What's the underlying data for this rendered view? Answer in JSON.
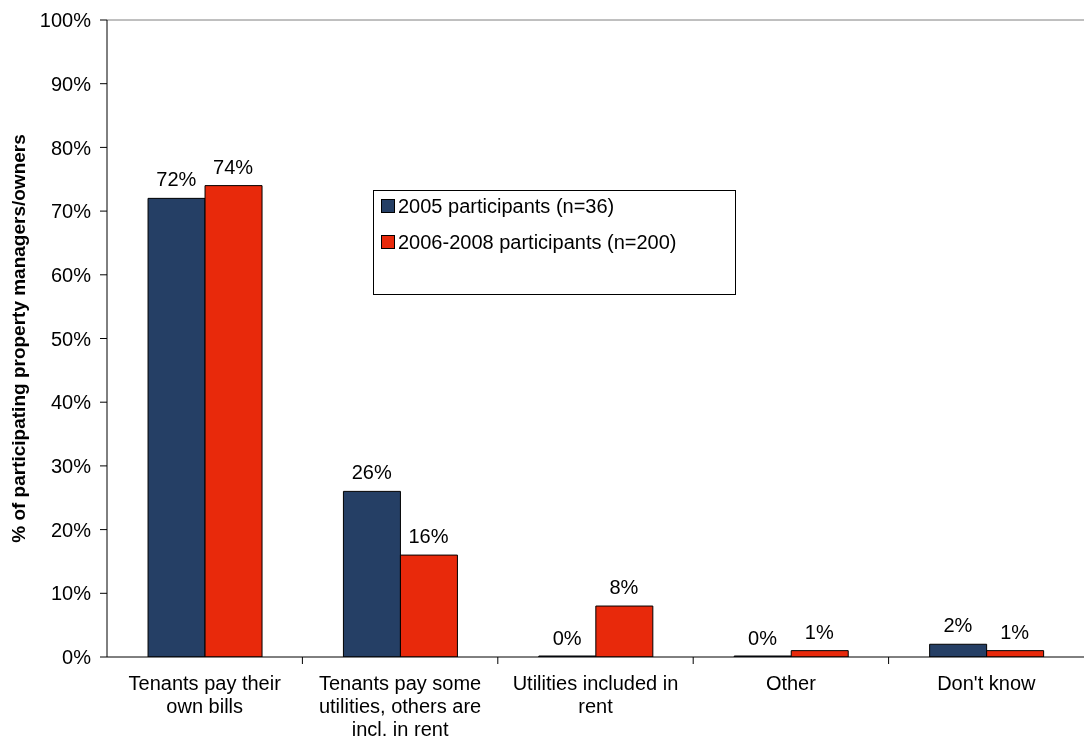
{
  "chart_data": {
    "type": "bar",
    "ylabel": "% of participating property managers/owners",
    "categories": [
      "Tenants pay their own bills",
      "Tenants pay some utilities, others are incl. in rent",
      "Utilities included in rent",
      "Other",
      "Don't know"
    ],
    "series": [
      {
        "name": "2005 participants (n=36)",
        "color": "#253f65",
        "values": [
          72,
          26,
          0,
          0,
          2
        ],
        "value_labels": [
          "72%",
          "26%",
          "0%",
          "0%",
          "2%"
        ]
      },
      {
        "name": "2006-2008 participants (n=200)",
        "color": "#e8290b",
        "values": [
          74,
          16,
          8,
          1,
          1
        ],
        "value_labels": [
          "74%",
          "16%",
          "8%",
          "1%",
          "1%"
        ]
      }
    ],
    "ylim": [
      0,
      100
    ],
    "yticks": [
      {
        "value": 0,
        "label": "0%"
      },
      {
        "value": 10,
        "label": "10%"
      },
      {
        "value": 20,
        "label": "20%"
      },
      {
        "value": 30,
        "label": "30%"
      },
      {
        "value": 40,
        "label": "40%"
      },
      {
        "value": 50,
        "label": "50%"
      },
      {
        "value": 60,
        "label": "60%"
      },
      {
        "value": 70,
        "label": "70%"
      },
      {
        "value": 80,
        "label": "80%"
      },
      {
        "value": 90,
        "label": "90%"
      },
      {
        "value": 100,
        "label": "100%"
      }
    ],
    "legend": "top"
  }
}
